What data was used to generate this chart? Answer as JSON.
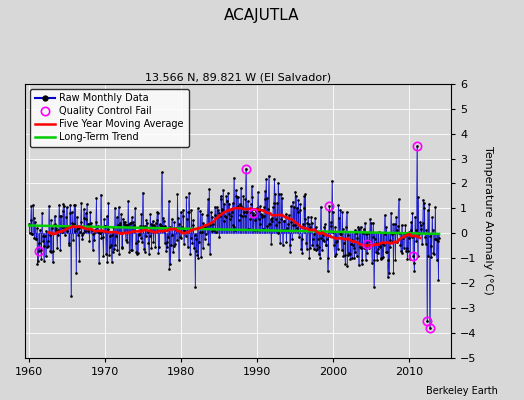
{
  "title": "ACAJUTLA",
  "subtitle": "13.566 N, 89.821 W (El Salvador)",
  "ylabel": "Temperature Anomaly (°C)",
  "watermark": "Berkeley Earth",
  "ylim": [
    -5,
    6
  ],
  "xlim": [
    1959.5,
    2015.5
  ],
  "xticks": [
    1960,
    1970,
    1980,
    1990,
    2000,
    2010
  ],
  "yticks": [
    -5,
    -4,
    -3,
    -2,
    -1,
    0,
    1,
    2,
    3,
    4,
    5,
    6
  ],
  "bg_color": "#d8d8d8",
  "plot_bg_color": "#d8d8d8",
  "raw_color": "#0000cc",
  "ma_color": "#ff0000",
  "trend_color": "#00cc00",
  "qc_color": "#ff00ff",
  "grid_color": "#ffffff",
  "seed": 42,
  "title_fontsize": 11,
  "subtitle_fontsize": 8,
  "tick_fontsize": 8,
  "ylabel_fontsize": 8,
  "legend_fontsize": 7,
  "watermark_fontsize": 7
}
